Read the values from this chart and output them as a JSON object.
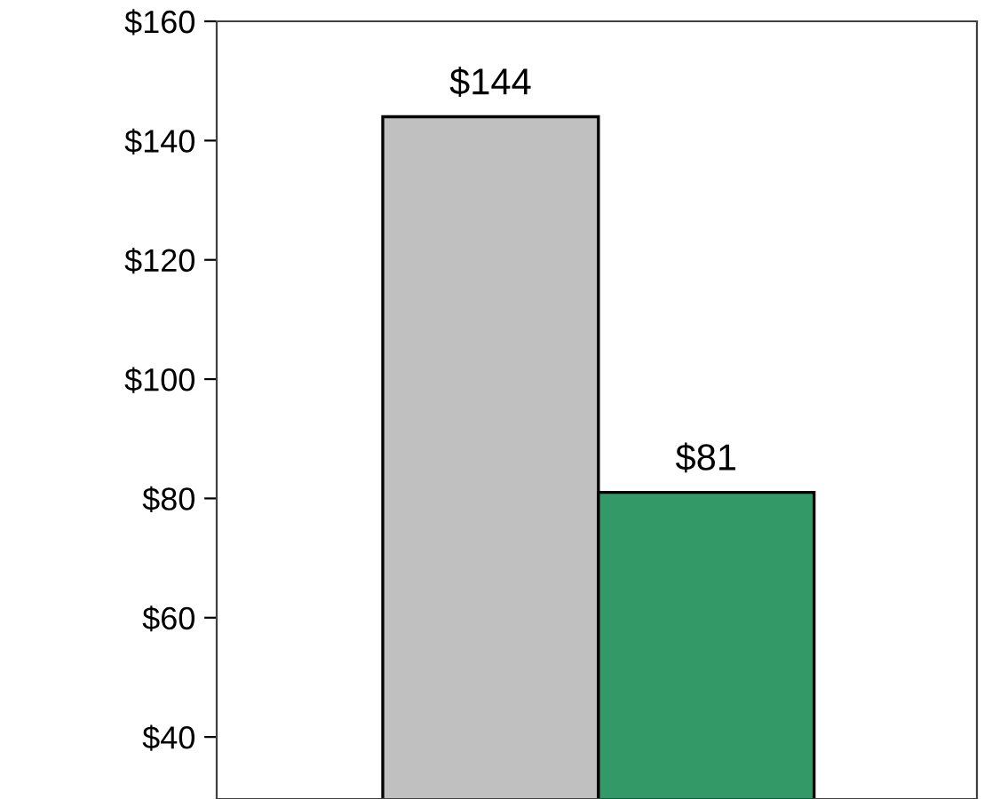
{
  "chart_data": {
    "type": "bar",
    "categories": [
      null,
      null
    ],
    "values": [
      144,
      81
    ],
    "colors": [
      "#c0c0c0",
      "#339966"
    ],
    "value_labels": [
      "$144",
      "$81"
    ],
    "ylim": [
      29.6,
      160
    ],
    "yticks": [
      {
        "value": 40,
        "label": "$40"
      },
      {
        "value": 60,
        "label": "$60"
      },
      {
        "value": 80,
        "label": "$80"
      },
      {
        "value": 100,
        "label": "$100"
      },
      {
        "value": 120,
        "label": "$120"
      },
      {
        "value": 140,
        "label": "$140"
      },
      {
        "value": 160,
        "label": "$160"
      }
    ],
    "grid": false,
    "legend": false
  }
}
